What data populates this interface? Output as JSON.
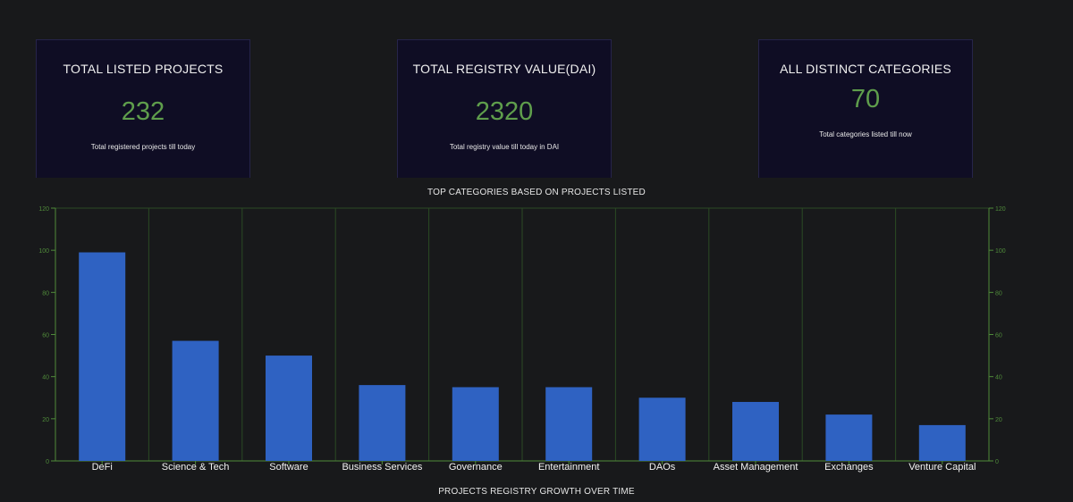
{
  "cards": [
    {
      "title": "TOTAL LISTED PROJECTS",
      "value": "232",
      "description": "Total registered projects till today"
    },
    {
      "title": "TOTAL REGISTRY VALUE(DAI)",
      "value": "2320",
      "description": "Total registry value till today in DAI"
    },
    {
      "title": "ALL DISTINCT CATEGORIES",
      "value": "70",
      "description": "Total categories listed till now"
    }
  ],
  "growth_title": "PROJECTS REGISTRY GROWTH OVER TIME",
  "colors": {
    "bar": "#2f62c2",
    "axis": "#4f8a3a",
    "grid": "#2b4a24",
    "value": "#5f9e4c",
    "card_bg": "#0f0d24"
  },
  "chart_data": {
    "type": "bar",
    "title": "TOP CATEGORIES BASED ON PROJECTS LISTED",
    "categories": [
      "DeFi",
      "Science & Tech",
      "Software",
      "Business Services",
      "Governance",
      "Entertainment",
      "DAOs",
      "Asset Management",
      "Exchanges",
      "Venture Capital"
    ],
    "values": [
      99,
      57,
      50,
      36,
      35,
      35,
      30,
      28,
      22,
      17
    ],
    "ylim": [
      0,
      120
    ],
    "yticks": [
      0,
      20,
      40,
      60,
      80,
      100,
      120
    ],
    "xlabel": "",
    "ylabel": "",
    "grid": "vertical"
  }
}
